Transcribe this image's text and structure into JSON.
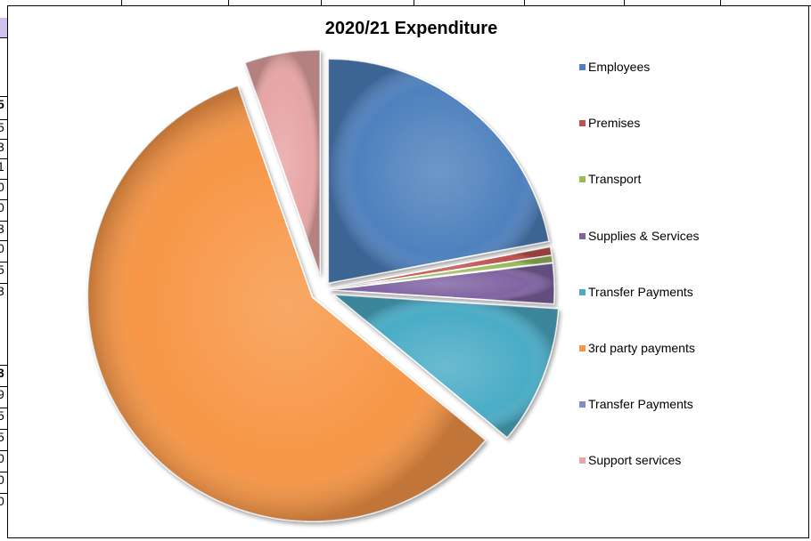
{
  "sheet": {
    "left_digits": [
      {
        "text": "5",
        "bold": true
      },
      {
        "text": "5",
        "bold": false
      },
      {
        "text": "3",
        "bold": false
      },
      {
        "text": "1",
        "bold": false
      },
      {
        "text": "0",
        "bold": false
      },
      {
        "text": "0",
        "bold": false
      },
      {
        "text": "3",
        "bold": false
      },
      {
        "text": "0",
        "bold": false
      },
      {
        "text": "5",
        "bold": false
      },
      {
        "text": "3",
        "bold": false
      },
      {
        "text": "3",
        "bold": true
      },
      {
        "text": "9",
        "bold": false
      },
      {
        "text": "5",
        "bold": false
      },
      {
        "text": "5",
        "bold": false
      },
      {
        "text": "0",
        "bold": false
      },
      {
        "text": "0",
        "bold": false
      },
      {
        "text": "0",
        "bold": false
      }
    ]
  },
  "chart_data": {
    "type": "pie",
    "title": "2020/21 Expenditure",
    "legend_position": "right",
    "exploded": true,
    "slices": [
      {
        "label": "Employees",
        "value": 22.0,
        "color": "#4f81bd"
      },
      {
        "label": "Premises",
        "value": 0.6,
        "color": "#c0504d"
      },
      {
        "label": "Transport",
        "value": 0.5,
        "color": "#9bbb59"
      },
      {
        "label": "Supplies & Services",
        "value": 2.9,
        "color": "#8064a2"
      },
      {
        "label": "Transfer Payments",
        "value": 10.0,
        "color": "#4bacc6"
      },
      {
        "label": "3rd party payments",
        "value": 58.6,
        "color": "#f79646"
      },
      {
        "label": "Transfer Payments",
        "value": 0.0,
        "color": "#7f8fc4"
      },
      {
        "label": "Support services",
        "value": 5.4,
        "color": "#e6a5a4"
      }
    ]
  }
}
